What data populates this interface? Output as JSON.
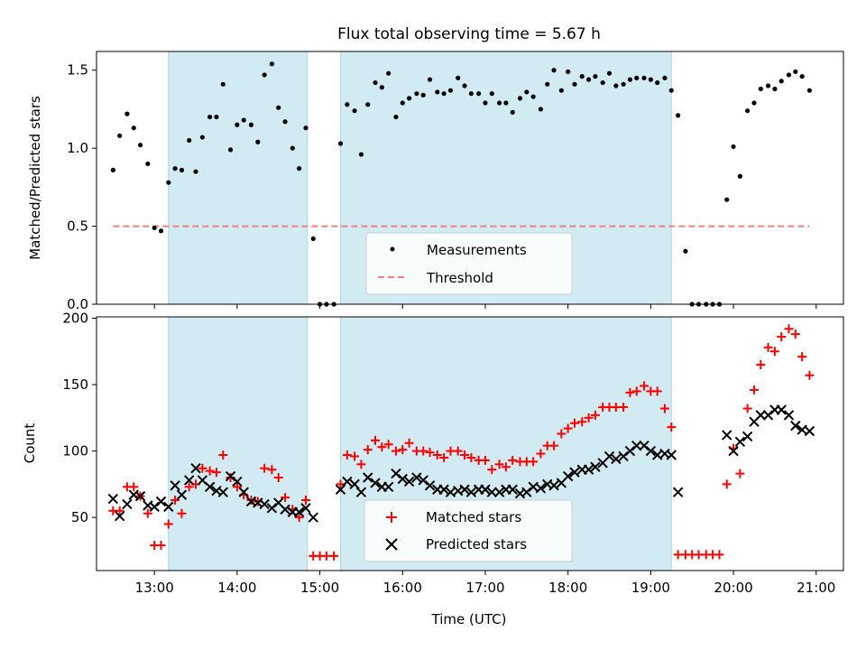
{
  "title": "Flux total observing time = 5.67 h",
  "colors": {
    "shade": "#add8e6",
    "measurement": "#000000",
    "threshold": "#f08080",
    "matched": "#ff0000",
    "predicted": "#000000"
  },
  "chart_data": [
    {
      "type": "scatter",
      "panel": "top",
      "ylabel": "Matched/Predicted stars",
      "ylim": [
        0,
        1.62
      ],
      "xlim": [
        12.3,
        21.33
      ],
      "yticks": [
        0.0,
        0.5,
        1.0,
        1.5
      ],
      "ytick_labels": [
        "0.0",
        "0.5",
        "1.0",
        "1.5"
      ],
      "shaded_intervals": [
        [
          13.17,
          14.85
        ],
        [
          15.25,
          19.25
        ]
      ],
      "threshold": {
        "label": "Threshold",
        "value": 0.5,
        "x_range": [
          12.5,
          20.92
        ],
        "style": "dashed"
      },
      "legend": {
        "placement": "lower-center",
        "entries": [
          "Measurements",
          "Threshold"
        ]
      },
      "series": [
        {
          "name": "Measurements",
          "x": [
            12.5,
            12.58,
            12.67,
            12.75,
            12.83,
            12.92,
            13.0,
            13.08,
            13.17,
            13.25,
            13.33,
            13.42,
            13.5,
            13.58,
            13.67,
            13.75,
            13.83,
            13.92,
            14.0,
            14.08,
            14.17,
            14.25,
            14.33,
            14.42,
            14.5,
            14.58,
            14.67,
            14.75,
            14.83,
            14.92,
            15.0,
            15.08,
            15.17,
            15.25,
            15.33,
            15.42,
            15.5,
            15.58,
            15.67,
            15.75,
            15.83,
            15.92,
            16.0,
            16.08,
            16.17,
            16.25,
            16.33,
            16.42,
            16.5,
            16.58,
            16.67,
            16.75,
            16.83,
            16.92,
            17.0,
            17.08,
            17.17,
            17.25,
            17.33,
            17.42,
            17.5,
            17.58,
            17.67,
            17.75,
            17.83,
            17.92,
            18.0,
            18.08,
            18.17,
            18.25,
            18.33,
            18.42,
            18.5,
            18.58,
            18.67,
            18.75,
            18.83,
            18.92,
            19.0,
            19.08,
            19.17,
            19.25,
            19.33,
            19.42,
            19.5,
            19.58,
            19.67,
            19.75,
            19.83,
            19.92,
            20.0,
            20.08,
            20.17,
            20.25,
            20.33,
            20.42,
            20.5,
            20.58,
            20.67,
            20.75,
            20.83,
            20.92
          ],
          "y": [
            0.86,
            1.08,
            1.22,
            1.13,
            1.02,
            0.9,
            0.49,
            0.47,
            0.78,
            0.87,
            0.86,
            1.05,
            0.85,
            1.07,
            1.2,
            1.2,
            1.41,
            0.99,
            1.15,
            1.18,
            1.15,
            1.04,
            1.47,
            1.54,
            1.26,
            1.17,
            1.0,
            0.87,
            1.13,
            0.42,
            0.0,
            0.0,
            0.0,
            1.03,
            1.28,
            1.24,
            0.96,
            1.28,
            1.42,
            1.39,
            1.48,
            1.2,
            1.29,
            1.32,
            1.35,
            1.34,
            1.44,
            1.36,
            1.35,
            1.37,
            1.45,
            1.4,
            1.35,
            1.35,
            1.29,
            1.35,
            1.29,
            1.29,
            1.23,
            1.32,
            1.36,
            1.33,
            1.25,
            1.41,
            1.5,
            1.37,
            1.49,
            1.41,
            1.46,
            1.44,
            1.46,
            1.42,
            1.48,
            1.4,
            1.41,
            1.44,
            1.45,
            1.45,
            1.44,
            1.42,
            1.45,
            1.37,
            1.21,
            0.34,
            0.0,
            0.0,
            0.0,
            0.0,
            0.0,
            0.67,
            1.01,
            0.82,
            1.24,
            1.29,
            1.38,
            1.4,
            1.38,
            1.43,
            1.47,
            1.49,
            1.46,
            1.37
          ]
        }
      ]
    },
    {
      "type": "scatter",
      "panel": "bottom",
      "ylabel": "Count",
      "xlabel": "Time (UTC)",
      "ylim": [
        10,
        201
      ],
      "xlim": [
        12.3,
        21.33
      ],
      "yticks": [
        50,
        100,
        150,
        200
      ],
      "ytick_labels": [
        "50",
        "100",
        "150",
        "200"
      ],
      "xticks": [
        13,
        14,
        15,
        16,
        17,
        18,
        19,
        20,
        21
      ],
      "xtick_labels": [
        "13:00",
        "14:00",
        "15:00",
        "16:00",
        "17:00",
        "18:00",
        "19:00",
        "20:00",
        "21:00"
      ],
      "shaded_intervals": [
        [
          13.17,
          14.85
        ],
        [
          15.25,
          19.25
        ]
      ],
      "legend": {
        "placement": "lower-center",
        "entries": [
          "Matched stars",
          "Predicted stars"
        ]
      },
      "series": [
        {
          "name": "Matched stars",
          "marker": "+",
          "x": [
            12.5,
            12.58,
            12.67,
            12.75,
            12.83,
            12.92,
            13.0,
            13.08,
            13.17,
            13.25,
            13.33,
            13.42,
            13.5,
            13.58,
            13.67,
            13.75,
            13.83,
            13.92,
            14.0,
            14.08,
            14.17,
            14.25,
            14.33,
            14.42,
            14.5,
            14.58,
            14.67,
            14.75,
            14.83,
            14.92,
            15.0,
            15.08,
            15.17,
            15.25,
            15.33,
            15.42,
            15.5,
            15.58,
            15.67,
            15.75,
            15.83,
            15.92,
            16.0,
            16.08,
            16.17,
            16.25,
            16.33,
            16.42,
            16.5,
            16.58,
            16.67,
            16.75,
            16.83,
            16.92,
            17.0,
            17.08,
            17.17,
            17.25,
            17.33,
            17.42,
            17.5,
            17.58,
            17.67,
            17.75,
            17.83,
            17.92,
            18.0,
            18.08,
            18.17,
            18.25,
            18.33,
            18.42,
            18.5,
            18.58,
            18.67,
            18.75,
            18.83,
            18.92,
            19.0,
            19.08,
            19.17,
            19.25,
            19.33,
            19.42,
            19.5,
            19.58,
            19.67,
            19.75,
            19.83,
            19.92,
            20.0,
            20.08,
            20.17,
            20.25,
            20.33,
            20.42,
            20.5,
            20.58,
            20.67,
            20.75,
            20.83,
            20.92
          ],
          "y": [
            55,
            55,
            73,
            73,
            66,
            53,
            29,
            29,
            45,
            63,
            53,
            73,
            75,
            87,
            85,
            84,
            97,
            80,
            73,
            67,
            63,
            62,
            87,
            86,
            80,
            65,
            56,
            50,
            63,
            21,
            21,
            21,
            21,
            75,
            97,
            96,
            90,
            101,
            108,
            103,
            105,
            100,
            101,
            106,
            100,
            100,
            99,
            97,
            95,
            100,
            100,
            97,
            95,
            93,
            93,
            86,
            90,
            88,
            93,
            92,
            92,
            92,
            98,
            104,
            104,
            113,
            117,
            121,
            122,
            125,
            127,
            133,
            133,
            133,
            133,
            144,
            145,
            149,
            145,
            145,
            132,
            118,
            22,
            22,
            22,
            22,
            22,
            22,
            22,
            75,
            102,
            83,
            132,
            146,
            165,
            178,
            175,
            186,
            192,
            188,
            171,
            157
          ]
        },
        {
          "name": "Predicted stars",
          "marker": "x",
          "x": [
            12.5,
            12.58,
            12.67,
            12.75,
            12.83,
            12.92,
            13.0,
            13.08,
            13.17,
            13.25,
            13.33,
            13.42,
            13.5,
            13.58,
            13.67,
            13.75,
            13.83,
            13.92,
            14.0,
            14.08,
            14.17,
            14.25,
            14.33,
            14.42,
            14.5,
            14.58,
            14.67,
            14.75,
            14.83,
            14.92,
            15.25,
            15.33,
            15.42,
            15.5,
            15.58,
            15.67,
            15.75,
            15.83,
            15.92,
            16.0,
            16.08,
            16.17,
            16.25,
            16.33,
            16.42,
            16.5,
            16.58,
            16.67,
            16.75,
            16.83,
            16.92,
            17.0,
            17.08,
            17.17,
            17.25,
            17.33,
            17.42,
            17.5,
            17.58,
            17.67,
            17.75,
            17.83,
            17.92,
            18.0,
            18.08,
            18.17,
            18.25,
            18.33,
            18.42,
            18.5,
            18.58,
            18.67,
            18.75,
            18.83,
            18.92,
            19.0,
            19.08,
            19.17,
            19.25,
            19.33,
            19.92,
            20.0,
            20.08,
            20.17,
            20.25,
            20.33,
            20.42,
            20.5,
            20.58,
            20.67,
            20.75,
            20.83,
            20.92
          ],
          "y": [
            64,
            51,
            60,
            67,
            66,
            59,
            58,
            62,
            58,
            74,
            67,
            78,
            87,
            78,
            73,
            70,
            69,
            81,
            77,
            69,
            62,
            61,
            60,
            57,
            61,
            56,
            54,
            54,
            57,
            50,
            71,
            77,
            75,
            69,
            80,
            76,
            73,
            73,
            83,
            79,
            77,
            80,
            78,
            74,
            71,
            71,
            69,
            70,
            71,
            69,
            71,
            71,
            69,
            69,
            71,
            71,
            68,
            69,
            73,
            72,
            75,
            74,
            76,
            81,
            84,
            86,
            86,
            88,
            91,
            96,
            94,
            96,
            100,
            104,
            104,
            100,
            97,
            98,
            97,
            69,
            112,
            100,
            107,
            111,
            122,
            127,
            127,
            131,
            131,
            127,
            119,
            116,
            115
          ]
        }
      ]
    }
  ]
}
